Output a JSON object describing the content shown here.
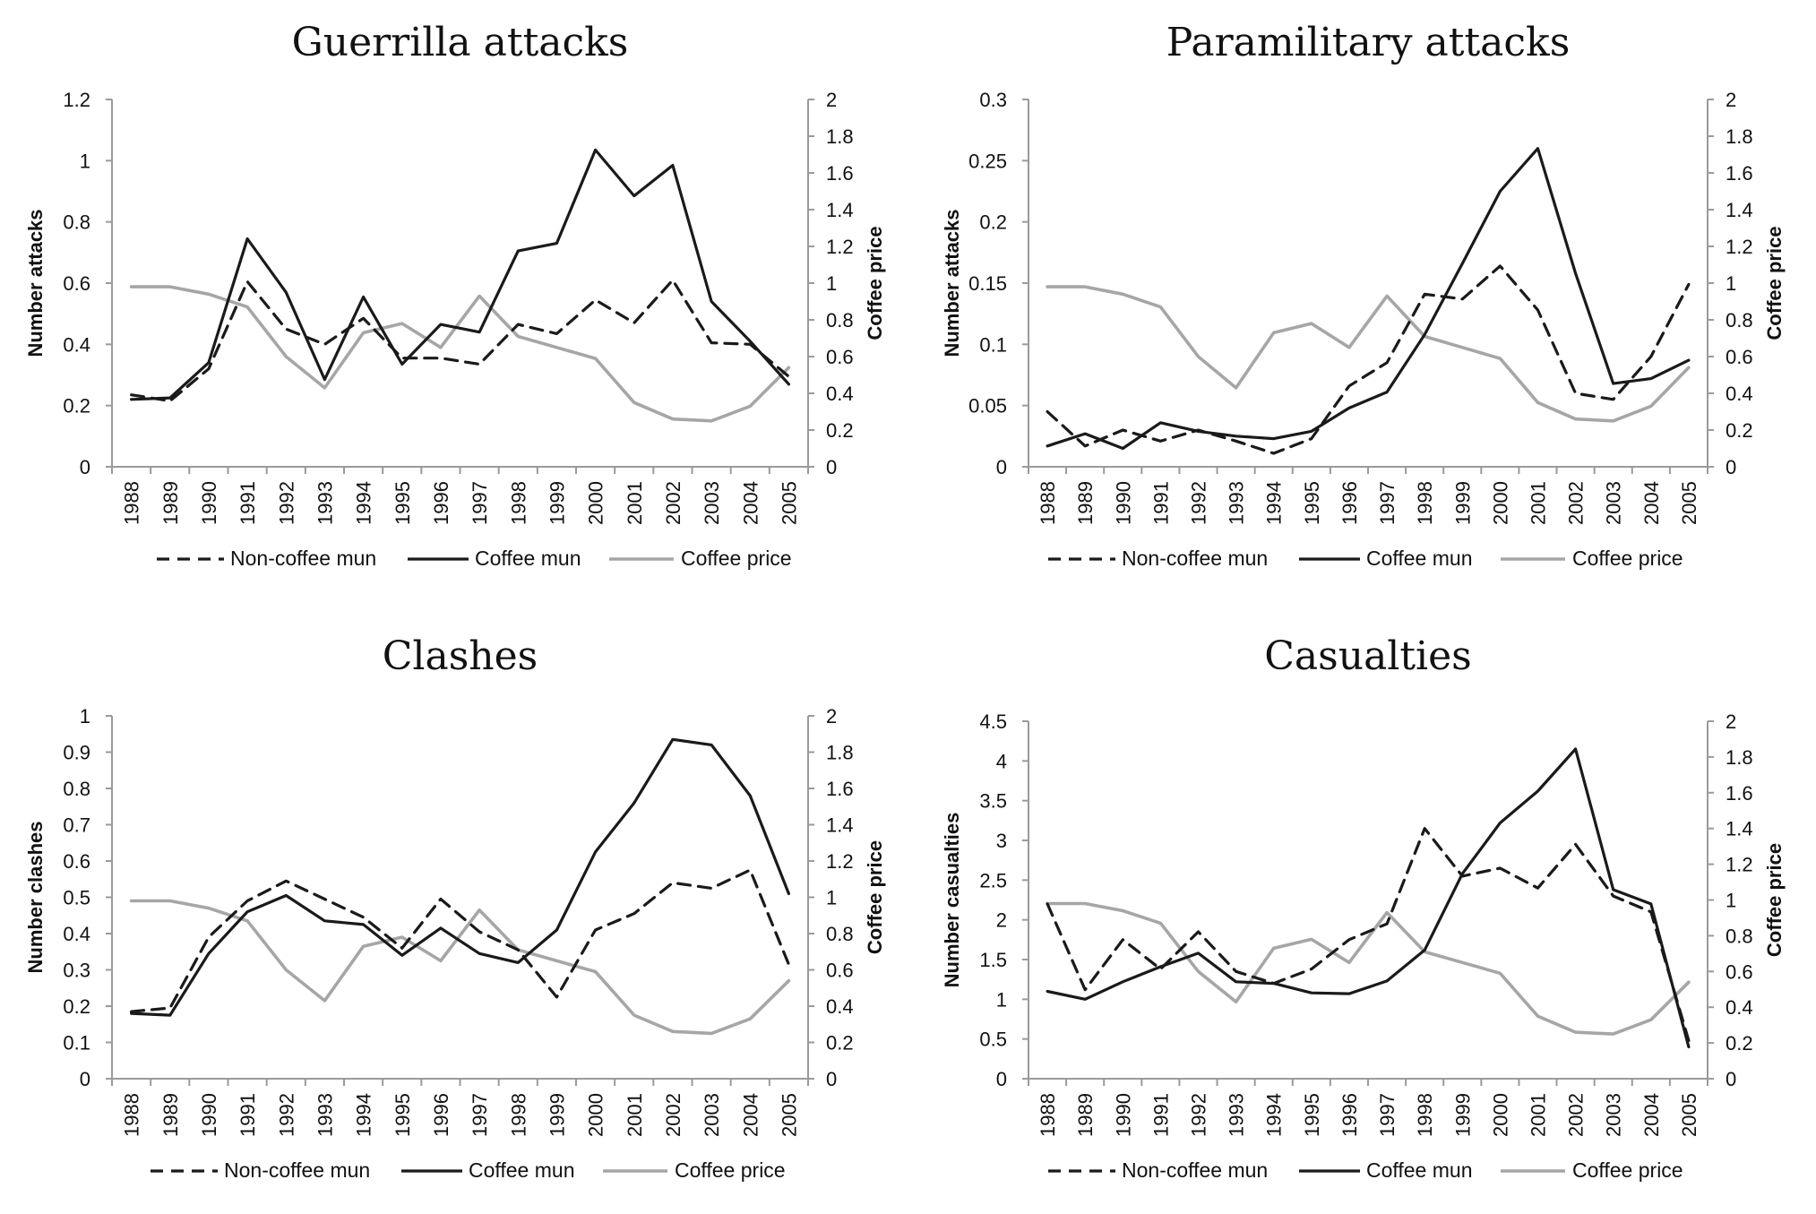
{
  "colors": {
    "non_coffee": "#1a1a1a",
    "coffee_mun": "#1a1a1a",
    "coffee_price": "#a6a6a6",
    "axis": "#9a9a9a"
  },
  "legend": {
    "non_coffee": "Non-coffee mun",
    "coffee_mun": "Coffee mun",
    "coffee_price": "Coffee price"
  },
  "chart_data": [
    {
      "type": "line",
      "title": "Guerrilla attacks",
      "ylabel": "Number attacks",
      "y2label": "Coffee price",
      "categories": [
        "1988",
        "1989",
        "1990",
        "1991",
        "1992",
        "1993",
        "1994",
        "1995",
        "1996",
        "1997",
        "1998",
        "1999",
        "2000",
        "2001",
        "2002",
        "2003",
        "2004",
        "2005"
      ],
      "ylim": [
        0,
        1.2
      ],
      "yticks": [
        "0",
        "0.2",
        "0.4",
        "0.6",
        "0.8",
        "1",
        "1.2"
      ],
      "y2lim": [
        0,
        2
      ],
      "y2ticks": [
        "0",
        "0.2",
        "0.4",
        "0.6",
        "0.8",
        "1",
        "1.2",
        "1.4",
        "1.6",
        "1.8",
        "2"
      ],
      "series": [
        {
          "name": "Non-coffee mun",
          "axis": "left",
          "style": "dashed",
          "values": [
            0.235,
            0.215,
            0.32,
            0.605,
            0.45,
            0.4,
            0.485,
            0.355,
            0.355,
            0.335,
            0.465,
            0.435,
            0.545,
            0.47,
            0.61,
            0.405,
            0.4,
            0.295
          ]
        },
        {
          "name": "Coffee mun",
          "axis": "left",
          "style": "solid",
          "values": [
            0.22,
            0.225,
            0.34,
            0.745,
            0.57,
            0.285,
            0.555,
            0.335,
            0.465,
            0.44,
            0.705,
            0.73,
            1.035,
            0.885,
            0.985,
            0.54,
            0.41,
            0.27
          ]
        },
        {
          "name": "Coffee price",
          "axis": "right",
          "style": "gray",
          "values": [
            0.98,
            0.98,
            0.94,
            0.87,
            0.6,
            0.43,
            0.73,
            0.78,
            0.65,
            0.93,
            0.71,
            0.65,
            0.59,
            0.35,
            0.26,
            0.25,
            0.33,
            0.54
          ]
        }
      ]
    },
    {
      "type": "line",
      "title": "Paramilitary attacks",
      "ylabel": "Number attacks",
      "y2label": "Coffee price",
      "categories": [
        "1988",
        "1989",
        "1990",
        "1991",
        "1992",
        "1993",
        "1994",
        "1995",
        "1996",
        "1997",
        "1998",
        "1999",
        "2000",
        "2001",
        "2002",
        "2003",
        "2004",
        "2005"
      ],
      "ylim": [
        0,
        0.3
      ],
      "yticks": [
        "0",
        "0.05",
        "0.1",
        "0.15",
        "0.2",
        "0.25",
        "0.3"
      ],
      "y2lim": [
        0,
        2
      ],
      "y2ticks": [
        "0",
        "0.2",
        "0.4",
        "0.6",
        "0.8",
        "1",
        "1.2",
        "1.4",
        "1.6",
        "1.8",
        "2"
      ],
      "series": [
        {
          "name": "Non-coffee mun",
          "axis": "left",
          "style": "dashed",
          "values": [
            0.045,
            0.017,
            0.03,
            0.021,
            0.03,
            0.021,
            0.011,
            0.023,
            0.066,
            0.085,
            0.141,
            0.137,
            0.164,
            0.128,
            0.06,
            0.055,
            0.09,
            0.149
          ]
        },
        {
          "name": "Coffee mun",
          "axis": "left",
          "style": "solid",
          "values": [
            0.017,
            0.027,
            0.015,
            0.036,
            0.029,
            0.025,
            0.023,
            0.029,
            0.048,
            0.061,
            0.108,
            0.166,
            0.225,
            0.26,
            0.158,
            0.068,
            0.072,
            0.087
          ]
        },
        {
          "name": "Coffee price",
          "axis": "right",
          "style": "gray",
          "values": [
            0.98,
            0.98,
            0.94,
            0.87,
            0.6,
            0.43,
            0.73,
            0.78,
            0.65,
            0.93,
            0.71,
            0.65,
            0.59,
            0.35,
            0.26,
            0.25,
            0.33,
            0.54
          ]
        }
      ]
    },
    {
      "type": "line",
      "title": "Clashes",
      "ylabel": "Number clashes",
      "y2label": "Coffee price",
      "categories": [
        "1988",
        "1989",
        "1990",
        "1991",
        "1992",
        "1993",
        "1994",
        "1995",
        "1996",
        "1997",
        "1998",
        "1999",
        "2000",
        "2001",
        "2002",
        "2003",
        "2004",
        "2005"
      ],
      "ylim": [
        0,
        1
      ],
      "yticks": [
        "0",
        "0.1",
        "0.2",
        "0.3",
        "0.4",
        "0.5",
        "0.6",
        "0.7",
        "0.8",
        "0.9",
        "1"
      ],
      "y2lim": [
        0,
        2
      ],
      "y2ticks": [
        "0",
        "0.2",
        "0.4",
        "0.6",
        "0.8",
        "1",
        "1.2",
        "1.4",
        "1.6",
        "1.8",
        "2"
      ],
      "series": [
        {
          "name": "Non-coffee mun",
          "axis": "left",
          "style": "dashed",
          "values": [
            0.185,
            0.195,
            0.39,
            0.49,
            0.545,
            0.495,
            0.445,
            0.36,
            0.495,
            0.405,
            0.355,
            0.225,
            0.41,
            0.455,
            0.54,
            0.525,
            0.575,
            0.315
          ]
        },
        {
          "name": "Coffee mun",
          "axis": "left",
          "style": "solid",
          "values": [
            0.18,
            0.175,
            0.345,
            0.46,
            0.505,
            0.435,
            0.425,
            0.34,
            0.415,
            0.345,
            0.32,
            0.41,
            0.625,
            0.76,
            0.935,
            0.92,
            0.78,
            0.51
          ]
        },
        {
          "name": "Coffee price",
          "axis": "right",
          "style": "gray",
          "values": [
            0.98,
            0.98,
            0.94,
            0.87,
            0.6,
            0.43,
            0.73,
            0.78,
            0.65,
            0.93,
            0.71,
            0.65,
            0.59,
            0.35,
            0.26,
            0.25,
            0.33,
            0.54
          ]
        }
      ]
    },
    {
      "type": "line",
      "title": "Casualties",
      "ylabel": "Number casualties",
      "y2label": "Coffee price",
      "categories": [
        "1988",
        "1989",
        "1990",
        "1991",
        "1992",
        "1993",
        "1994",
        "1995",
        "1996",
        "1997",
        "1998",
        "1999",
        "2000",
        "2001",
        "2002",
        "2003",
        "2004",
        "2005"
      ],
      "ylim": [
        0,
        4.5
      ],
      "yticks": [
        "0",
        "0.5",
        "1",
        "1.5",
        "2",
        "2.5",
        "3",
        "3.5",
        "4",
        "4.5"
      ],
      "y2lim": [
        0,
        2
      ],
      "y2ticks": [
        "0",
        "0.2",
        "0.4",
        "0.6",
        "0.8",
        "1",
        "1.2",
        "1.4",
        "1.6",
        "1.8",
        "2"
      ],
      "series": [
        {
          "name": "Non-coffee mun",
          "axis": "left",
          "style": "dashed",
          "values": [
            2.2,
            1.12,
            1.75,
            1.38,
            1.85,
            1.35,
            1.2,
            1.38,
            1.75,
            1.95,
            3.15,
            2.55,
            2.65,
            2.4,
            2.95,
            2.3,
            2.1,
            0.48
          ]
        },
        {
          "name": "Coffee mun",
          "axis": "left",
          "style": "solid",
          "values": [
            1.1,
            1.0,
            1.22,
            1.41,
            1.58,
            1.22,
            1.2,
            1.08,
            1.07,
            1.23,
            1.62,
            2.58,
            3.22,
            3.62,
            4.15,
            2.38,
            2.2,
            0.4
          ]
        },
        {
          "name": "Coffee price",
          "axis": "right",
          "style": "gray",
          "values": [
            0.98,
            0.98,
            0.94,
            0.87,
            0.6,
            0.43,
            0.73,
            0.78,
            0.65,
            0.93,
            0.71,
            0.65,
            0.59,
            0.35,
            0.26,
            0.25,
            0.33,
            0.54
          ]
        }
      ]
    }
  ]
}
